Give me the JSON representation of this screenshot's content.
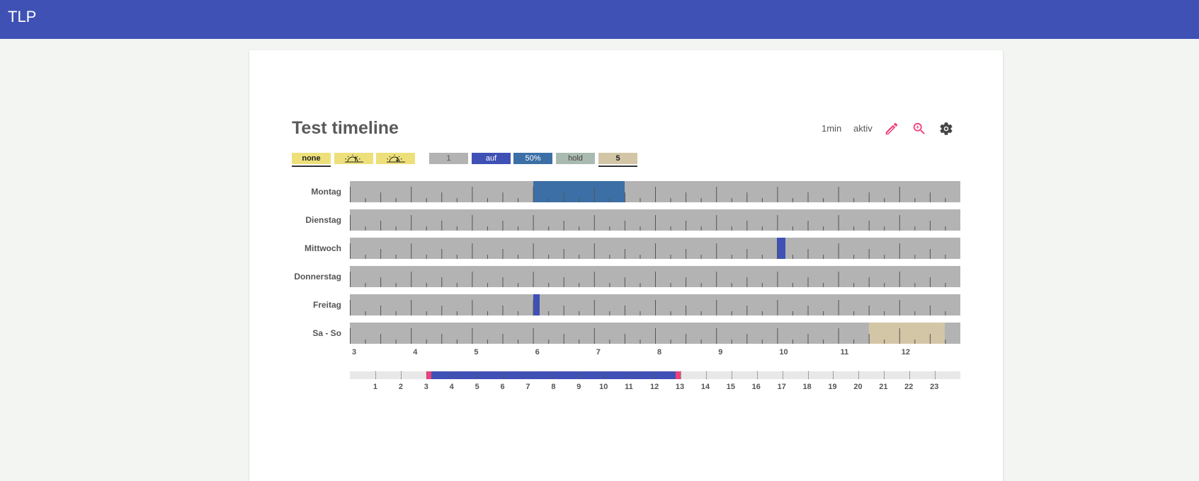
{
  "app": {
    "title": "TLP"
  },
  "timeline": {
    "title": "Test timeline",
    "interval_label": "1min",
    "status_label": "aktiv",
    "icons": [
      "pencil-icon",
      "zoom-in-icon",
      "gear-icon"
    ]
  },
  "legend": [
    {
      "label": "none",
      "kind": "text",
      "color": "#ede07a",
      "text_color": "#222222",
      "selected": true
    },
    {
      "label": "",
      "kind": "sunrise",
      "color": "#ede07a",
      "icon": "sunrise-icon",
      "selected": false
    },
    {
      "label": "",
      "kind": "sunset",
      "color": "#ede07a",
      "icon": "sunset-icon",
      "selected": false
    },
    {
      "label": "1",
      "kind": "text",
      "color": "#b3b3b3",
      "text_color": "#555555",
      "selected": false
    },
    {
      "label": "auf",
      "kind": "text",
      "color": "#3f51b5",
      "text_color": "#ffffff",
      "selected": false
    },
    {
      "label": "50%",
      "kind": "text",
      "color": "#3c6fa6",
      "text_color": "#ffffff",
      "selected": false
    },
    {
      "label": "hold",
      "kind": "text",
      "color": "#a9bab1",
      "text_color": "#444444",
      "selected": false
    },
    {
      "label": "5",
      "kind": "text",
      "color": "#d3c6a6",
      "text_color": "#222222",
      "selected": true
    }
  ],
  "schedule": {
    "visible_range": [
      3,
      13
    ],
    "track_color": "#b3b3b3",
    "rows": [
      {
        "day": "Montag",
        "segments": [
          {
            "start": 6.0,
            "end": 7.5,
            "color": "#3c6fa6"
          }
        ]
      },
      {
        "day": "Dienstag",
        "segments": []
      },
      {
        "day": "Mittwoch",
        "segments": [
          {
            "start": 10.0,
            "end": 10.13,
            "color": "#3f51b5"
          }
        ]
      },
      {
        "day": "Donnerstag",
        "segments": []
      },
      {
        "day": "Freitag",
        "segments": [
          {
            "start": 6.0,
            "end": 6.11,
            "color": "#3f51b5"
          }
        ]
      },
      {
        "day": "Sa - So",
        "segments": [
          {
            "start": 11.5,
            "end": 12.75,
            "color": "#d3c6a6"
          }
        ]
      }
    ],
    "x_ticks": [
      "3",
      "4",
      "5",
      "6",
      "7",
      "8",
      "9",
      "10",
      "11",
      "12"
    ]
  },
  "overview": {
    "range_start": 3,
    "range_end": 13,
    "range_color": "#3f51b5",
    "handle_color": "#f0407a",
    "ticks": [
      "1",
      "2",
      "3",
      "4",
      "5",
      "6",
      "7",
      "8",
      "9",
      "10",
      "11",
      "12",
      "13",
      "14",
      "15",
      "16",
      "17",
      "18",
      "19",
      "20",
      "21",
      "22",
      "23"
    ]
  }
}
